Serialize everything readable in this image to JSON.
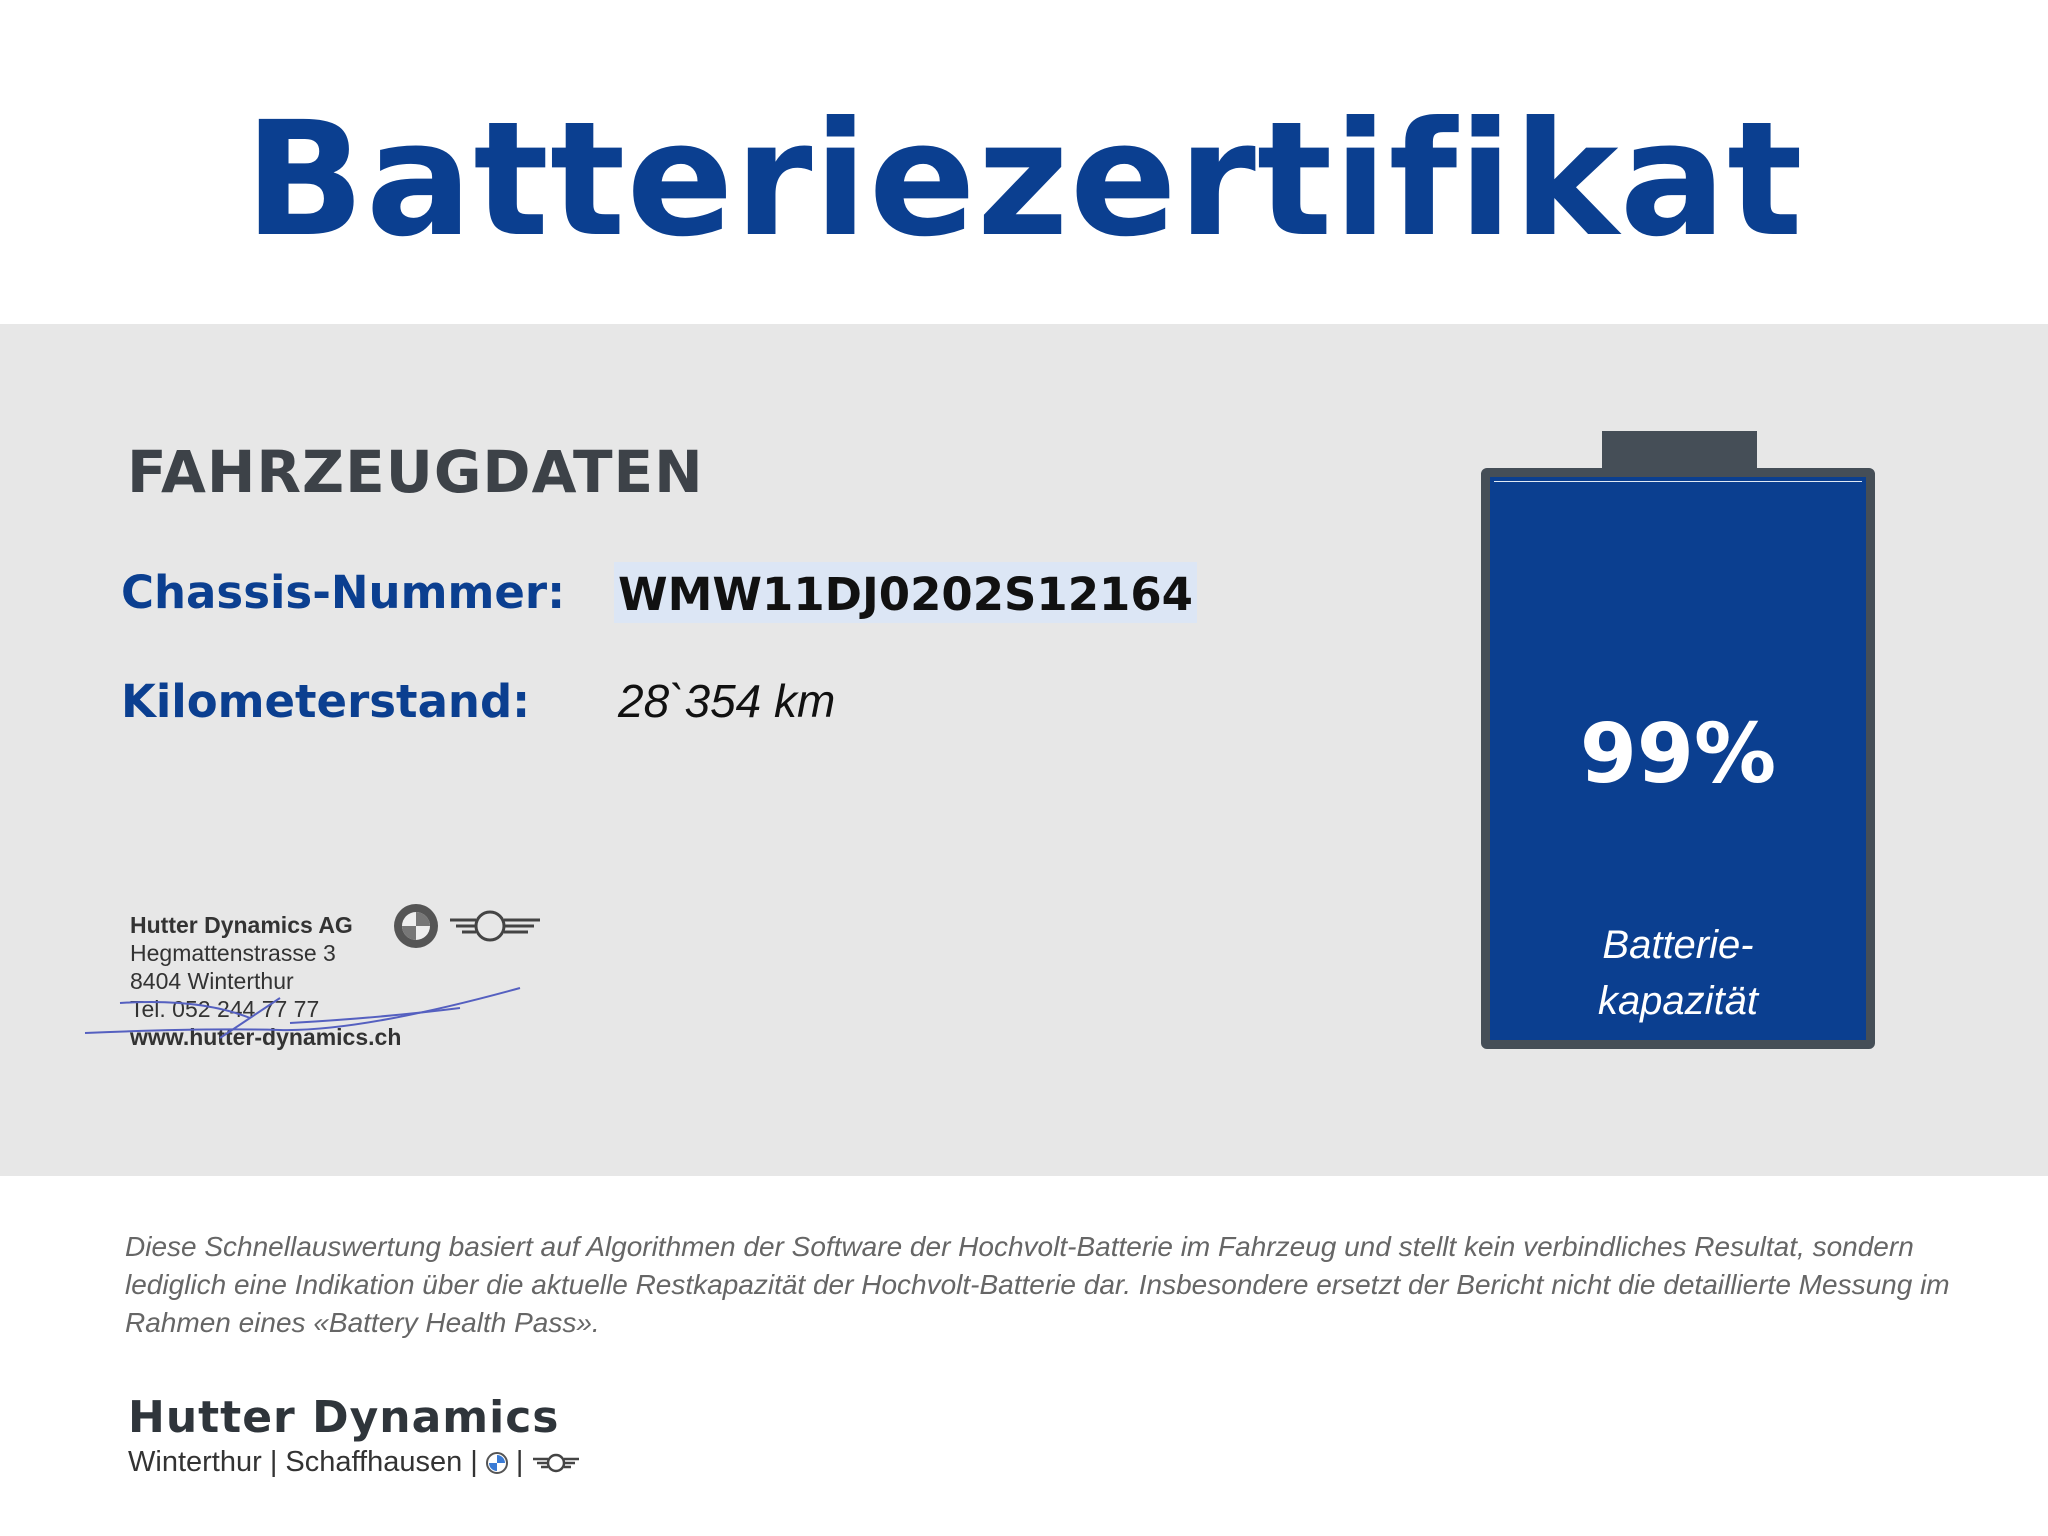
{
  "title": "Batteriezertifikat",
  "section_title": "FAHRZEUGDATEN",
  "fields": [
    {
      "label": "Chassis-Nummer:",
      "value": "WMW11DJ0202S12164"
    },
    {
      "label": "Kilometerstand:",
      "value": "28`354 km"
    }
  ],
  "stamp": {
    "company": "Hutter Dynamics AG",
    "street": "Hegmattenstrasse 3",
    "city": "8404 Winterthur",
    "phone": "Tel. 052 244 77 77",
    "web": "www.hutter-dynamics.ch"
  },
  "battery": {
    "percent_label": "99%",
    "level": 0.99,
    "caption_line1": "Batterie-",
    "caption_line2": "kapazität",
    "fill_color": "#0b3f90"
  },
  "disclaimer": "Diese Schnellauswertung basiert auf Algorithmen der Software der Hochvolt-Batterie im Fahrzeug und stellt kein verbindliches Resultat, sondern lediglich eine Indikation über die aktuelle Restkapazität der Hochvolt-Batterie dar. Insbesondere ersetzt der Bericht nicht die detaillierte Messung im Rahmen eines «Battery Health Pass».",
  "footer": {
    "brand": "Hutter Dynamics",
    "locations": "Winterthur | Schaffhausen |",
    "sep": "|"
  },
  "colors": {
    "brand_blue": "#0b3f90",
    "band_gray": "#e7e7e7",
    "dark": "#454e57"
  }
}
